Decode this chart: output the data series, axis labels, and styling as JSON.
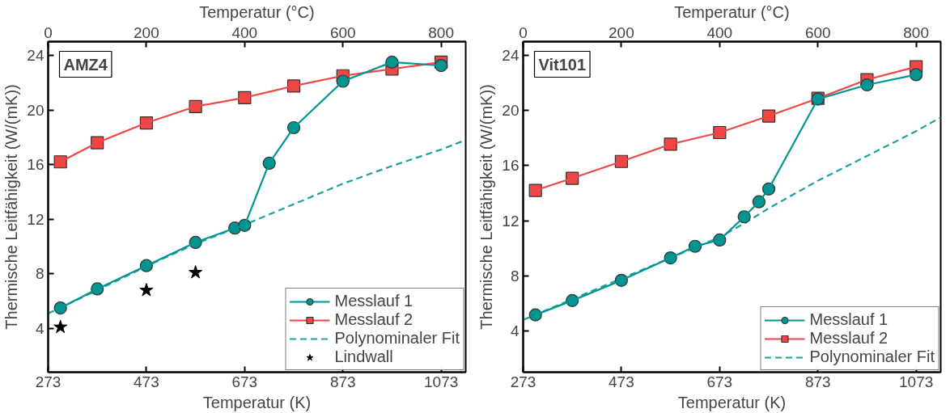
{
  "chart_data": [
    {
      "type": "line",
      "xlabel": "Temperatur (K)",
      "x2label": "Temperatur (°C)",
      "ylabel": "Thermische Leitfähigkeit (W/(mK))",
      "annotations": [
        "AMZ4"
      ],
      "xlim": [
        273,
        1123
      ],
      "xticks": [
        273,
        473,
        673,
        873,
        1073
      ],
      "x2lim": [
        0,
        850
      ],
      "x2ticks": [
        0,
        200,
        400,
        600,
        800
      ],
      "ylim": [
        0.8,
        25
      ],
      "yticks": [
        4,
        8,
        12,
        16,
        20,
        24
      ],
      "grid": false,
      "legend": "bottom right",
      "series": [
        {
          "name": "Messlauf 1",
          "color": "#009591",
          "marker": "circle",
          "line_style": "solid",
          "x": [
            298,
            373,
            473,
            573,
            653,
            673,
            723,
            773,
            873,
            973,
            1073
          ],
          "values": [
            5.5,
            6.9,
            8.6,
            10.3,
            11.35,
            11.55,
            16.1,
            18.7,
            22.1,
            23.5,
            23.25
          ]
        },
        {
          "name": "Messlauf 2",
          "color": "#f04646",
          "marker": "square",
          "line_style": "solid",
          "x": [
            298,
            373,
            473,
            573,
            673,
            773,
            873,
            973,
            1073
          ],
          "values": [
            16.2,
            17.6,
            19.05,
            20.25,
            20.9,
            21.75,
            22.5,
            23.0,
            23.5
          ]
        },
        {
          "name": "Polynominaler Fit",
          "color": "#1aa39d",
          "marker": "none",
          "line_style": "dashed",
          "x": [
            273,
            373,
            473,
            573,
            673,
            773,
            873,
            973,
            1073,
            1123
          ],
          "values": [
            5.1,
            6.8,
            8.55,
            10.2,
            11.6,
            13.1,
            14.6,
            15.9,
            17.1,
            17.8
          ]
        },
        {
          "name": "Lindwall",
          "type": "scatter",
          "color": "#000000",
          "marker": "star",
          "x": [
            298,
            473,
            573
          ],
          "values": [
            4.1,
            6.8,
            8.1
          ]
        }
      ]
    },
    {
      "type": "line",
      "xlabel": "Temperatur (K)",
      "x2label": "Temperatur (°C)",
      "ylabel": "Thermische Leitfähigkeit (W/(mK))",
      "annotations": [
        "Vit101"
      ],
      "xlim": [
        273,
        1123
      ],
      "xticks": [
        273,
        473,
        673,
        873,
        1073
      ],
      "x2lim": [
        0,
        850
      ],
      "x2ticks": [
        0,
        200,
        400,
        600,
        800
      ],
      "ylim": [
        1,
        25
      ],
      "yticks": [
        4,
        8,
        12,
        16,
        20,
        24
      ],
      "grid": false,
      "legend": "bottom right",
      "series": [
        {
          "name": "Messlauf 1",
          "color": "#009591",
          "marker": "circle",
          "line_style": "solid",
          "x": [
            298,
            373,
            473,
            573,
            623,
            673,
            723,
            753,
            773,
            873,
            973,
            1073
          ],
          "values": [
            5.16,
            6.2,
            7.67,
            9.3,
            10.14,
            10.6,
            12.28,
            13.37,
            14.3,
            20.83,
            21.86,
            22.6
          ]
        },
        {
          "name": "Messlauf 2",
          "color": "#f04646",
          "marker": "square",
          "line_style": "solid",
          "x": [
            298,
            373,
            473,
            573,
            673,
            773,
            873,
            973,
            1073
          ],
          "values": [
            14.2,
            15.08,
            16.3,
            17.55,
            18.4,
            19.6,
            20.88,
            22.24,
            23.17
          ]
        },
        {
          "name": "Polynominaler Fit",
          "color": "#1aa39d",
          "marker": "none",
          "line_style": "dashed",
          "x": [
            273,
            373,
            473,
            573,
            673,
            723,
            773,
            873,
            973,
            1073,
            1123
          ],
          "values": [
            4.8,
            6.3,
            7.8,
            9.3,
            10.8,
            11.8,
            12.9,
            14.9,
            16.7,
            18.5,
            19.5
          ]
        }
      ]
    }
  ]
}
